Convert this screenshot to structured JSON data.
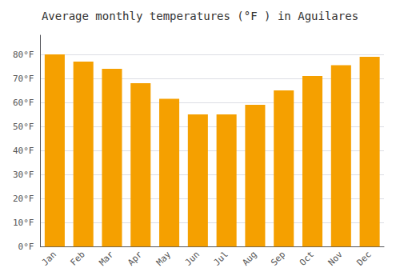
{
  "chart_data": {
    "type": "bar",
    "title": "Average monthly temperatures (°F ) in Aguilares",
    "categories": [
      "Jan",
      "Feb",
      "Mar",
      "Apr",
      "May",
      "Jun",
      "Jul",
      "Aug",
      "Sep",
      "Oct",
      "Nov",
      "Dec"
    ],
    "values": [
      80,
      77,
      74,
      68,
      61.5,
      55,
      55,
      59,
      65,
      71,
      75.5,
      79
    ],
    "color": "#F5A000",
    "ylim": [
      0,
      88
    ],
    "yticks": [
      {
        "value": 0,
        "label": "0°F"
      },
      {
        "value": 10,
        "label": "10°F"
      },
      {
        "value": 20,
        "label": "20°F"
      },
      {
        "value": 30,
        "label": "30°F"
      },
      {
        "value": 40,
        "label": "40°F"
      },
      {
        "value": 50,
        "label": "50°F"
      },
      {
        "value": 60,
        "label": "60°F"
      },
      {
        "value": 70,
        "label": "70°F"
      },
      {
        "value": 80,
        "label": "80°F"
      }
    ],
    "grid": true
  }
}
